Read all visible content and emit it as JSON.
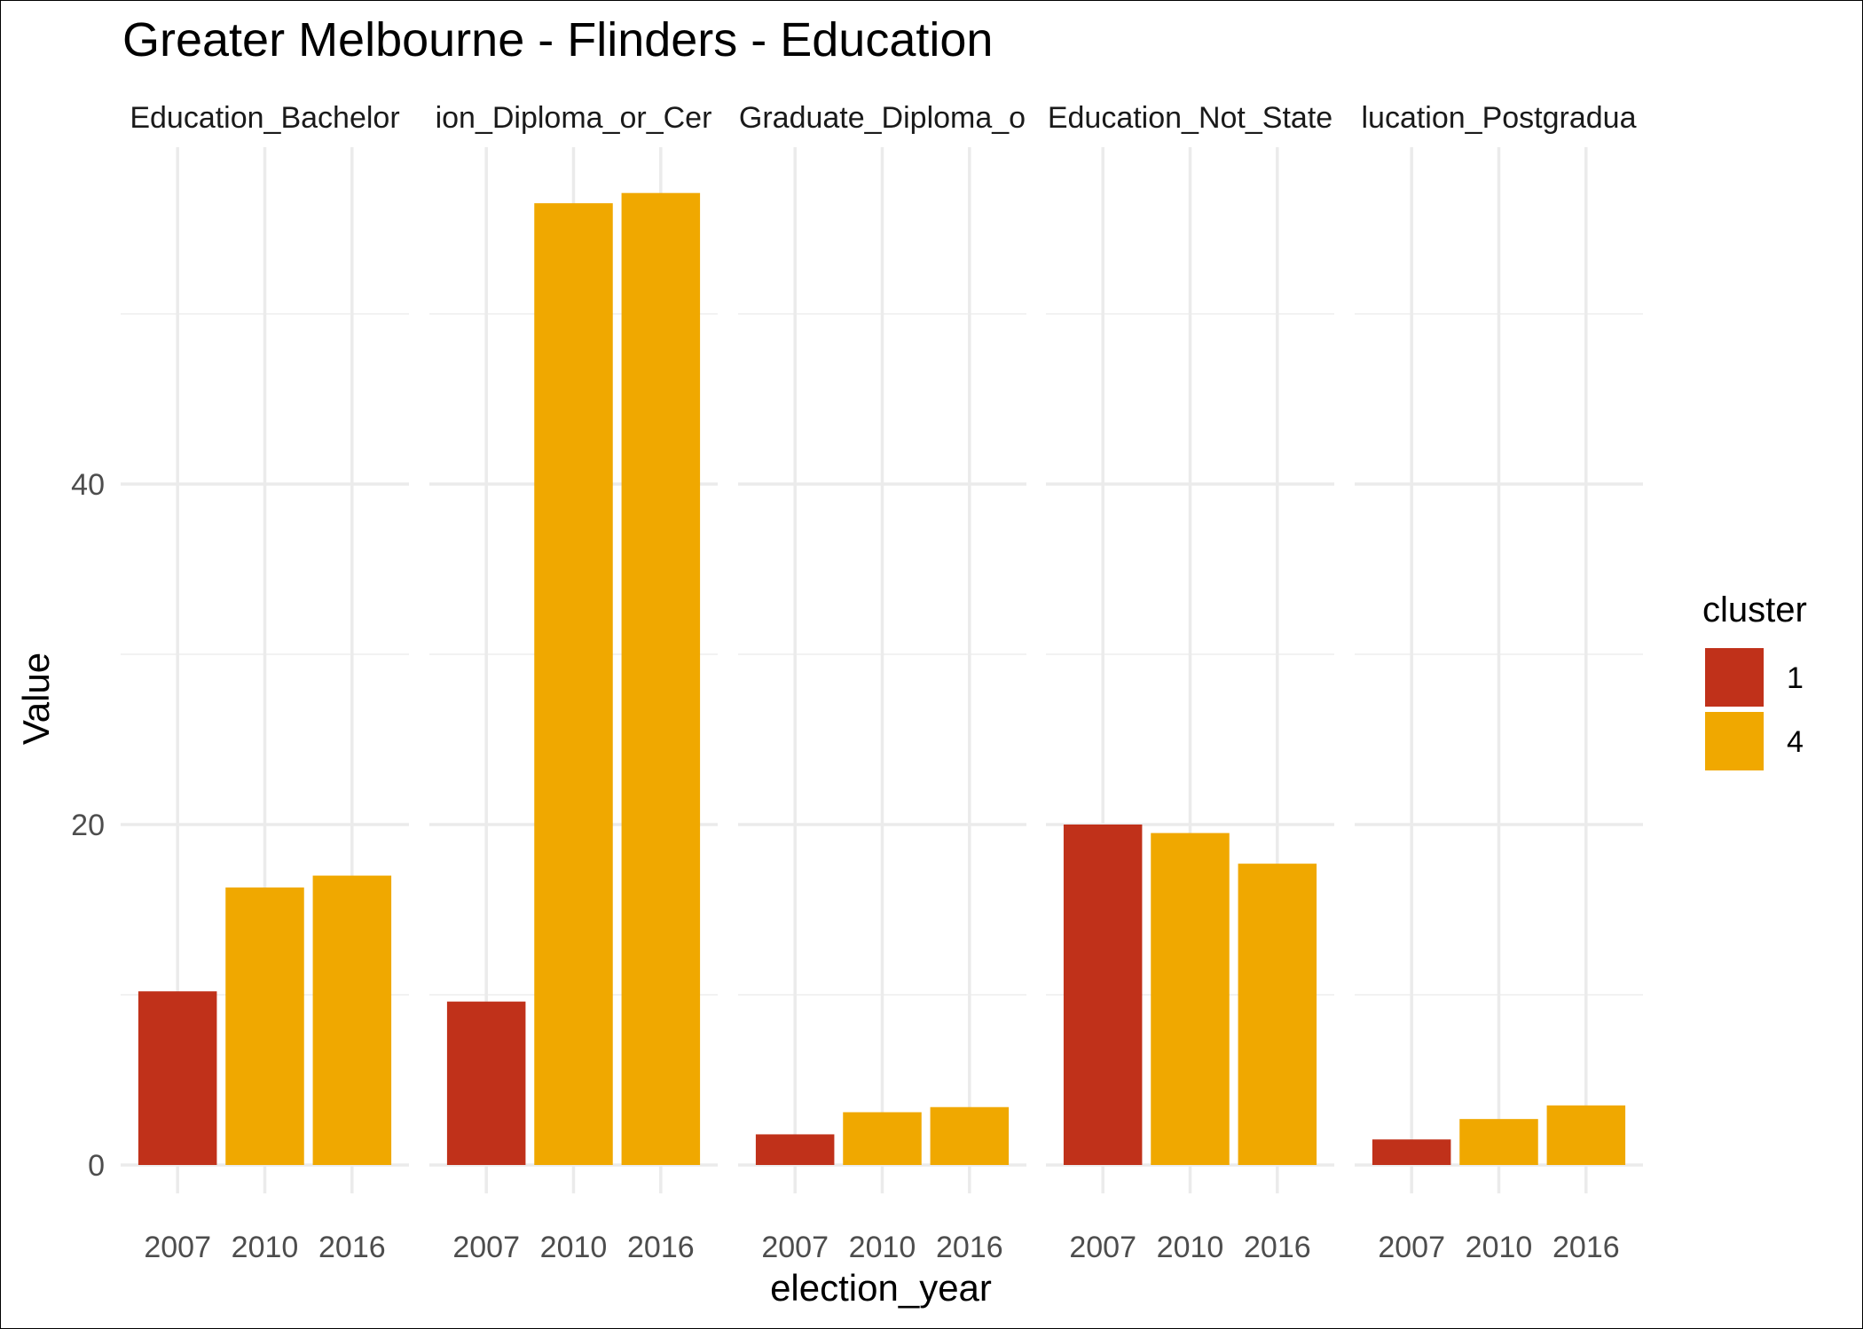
{
  "chart_data": {
    "type": "bar",
    "title": "Greater Melbourne - Flinders - Education",
    "xlabel": "election_year",
    "ylabel": "Value",
    "ylim": [
      0,
      58
    ],
    "y_ticks": [
      0,
      20,
      40
    ],
    "grid": true,
    "legend": {
      "title": "cluster",
      "placement": "right",
      "entries": [
        {
          "label": "1",
          "color": "#C0311A"
        },
        {
          "label": "4",
          "color": "#F0A800"
        }
      ]
    },
    "categories": [
      "2007",
      "2010",
      "2016"
    ],
    "facets": [
      {
        "label": "Education_Bachelor",
        "values": [
          10.2,
          16.3,
          17.0
        ],
        "clusters": [
          "1",
          "4",
          "4"
        ]
      },
      {
        "label": "ion_Diploma_or_Cer",
        "values": [
          9.6,
          56.5,
          57.1
        ],
        "clusters": [
          "1",
          "4",
          "4"
        ]
      },
      {
        "label": "Graduate_Diploma_o",
        "values": [
          1.8,
          3.1,
          3.4
        ],
        "clusters": [
          "1",
          "4",
          "4"
        ]
      },
      {
        "label": "Education_Not_State",
        "values": [
          20.0,
          19.5,
          17.7
        ],
        "clusters": [
          "1",
          "4",
          "4"
        ]
      },
      {
        "label": "lucation_Postgradua",
        "values": [
          1.5,
          2.7,
          3.5
        ],
        "clusters": [
          "1",
          "4",
          "4"
        ]
      }
    ]
  }
}
